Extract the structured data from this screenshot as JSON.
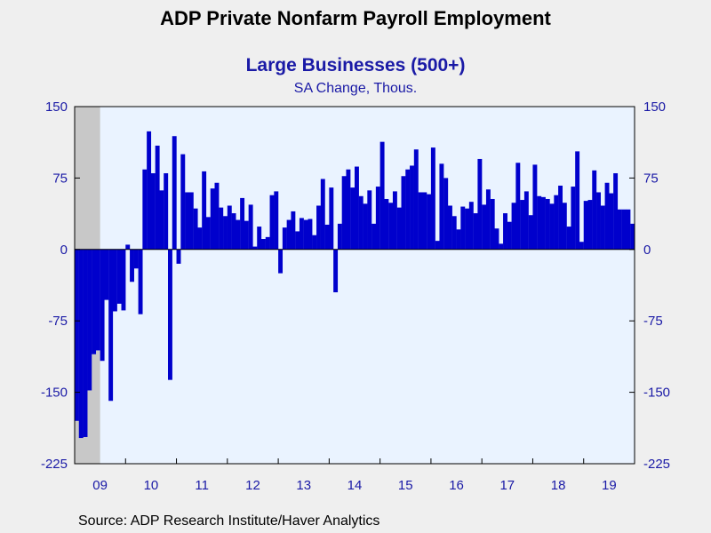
{
  "header": {
    "title": "ADP Private Nonfarm Payroll Employment"
  },
  "source": "Source:  ADP Research Institute/Haver Analytics",
  "colors": {
    "bar": "#0000cc",
    "plot_background": "#eaf3ff",
    "recession_shading": "#c8c8c8",
    "axis_text": "#1a1aa6"
  },
  "chart_data": {
    "type": "bar",
    "title": "Large Businesses (500+)",
    "subtitle": "SA Change, Thous.",
    "xlabel": "",
    "ylabel": "",
    "ylim": [
      -225,
      150
    ],
    "yticks": [
      150,
      75,
      0,
      -75,
      -150,
      -225
    ],
    "ytick_labels": [
      "150",
      "75",
      "0",
      "-75",
      "-150",
      "-225"
    ],
    "dual_y_axis": true,
    "grid": false,
    "start": "2009-01",
    "frequency": "monthly",
    "recession_shading": {
      "from": "2009-01",
      "to": "2009-06"
    },
    "year_labels": [
      "09",
      "10",
      "11",
      "12",
      "13",
      "14",
      "15",
      "16",
      "17",
      "18",
      "19"
    ],
    "series": [
      {
        "values": [
          -180,
          -198,
          -197,
          -148,
          -110,
          -106,
          -117,
          -53,
          -159,
          -65,
          -57,
          -64,
          5,
          -34,
          -20,
          -68,
          84,
          124,
          80,
          109,
          62,
          80,
          -137,
          119,
          -15,
          100,
          60,
          60,
          43,
          23,
          82,
          34,
          64,
          70,
          44,
          35,
          46,
          38,
          31,
          54,
          30,
          47,
          3,
          24,
          11,
          13,
          57,
          61,
          -25,
          23,
          31,
          40,
          19,
          33,
          31,
          32,
          15,
          46,
          74,
          26,
          65,
          -45,
          27,
          77,
          84,
          65,
          87,
          56,
          48,
          62,
          27,
          66,
          113,
          53,
          49,
          61,
          44,
          77,
          84,
          88,
          105,
          60,
          60,
          58,
          107,
          9,
          90,
          75,
          46,
          35,
          21,
          45,
          43,
          50,
          38,
          95,
          47,
          63,
          53,
          22,
          6,
          38,
          29,
          49,
          91,
          52,
          61,
          36,
          89,
          56,
          55,
          53,
          48,
          57,
          67,
          49,
          24,
          66,
          103,
          8,
          51,
          52,
          83,
          60,
          46,
          70,
          59,
          80,
          42,
          42,
          42,
          27
        ]
      }
    ]
  }
}
